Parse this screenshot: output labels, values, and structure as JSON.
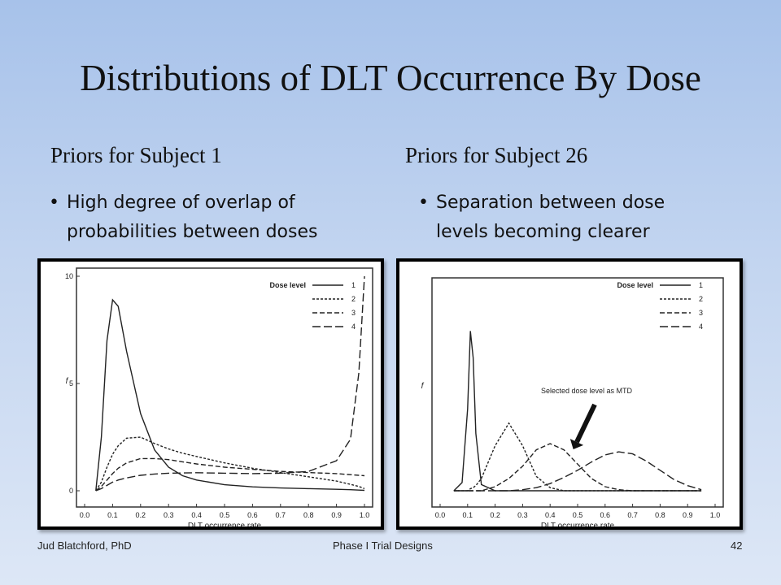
{
  "slide": {
    "title": "Distributions of DLT Occurrence By Dose",
    "left": {
      "heading": "Priors for Subject 1",
      "bullet_line1": "High degree of overlap of",
      "bullet_line2": "probabilities between doses"
    },
    "right": {
      "heading": "Priors for Subject 26",
      "bullet_line1": "Separation between dose",
      "bullet_line2": "levels becoming clearer"
    },
    "footer": {
      "author": "Jud Blatchford, PhD",
      "center": "Phase I Trial Designs",
      "page": "42"
    }
  },
  "chart_data": [
    {
      "type": "line",
      "xlabel": "DLT occurrence rate",
      "ylabel": "f",
      "xlim": [
        0,
        1.0
      ],
      "ylim": [
        0,
        10
      ],
      "x_ticks": [
        "0.0",
        "0.1",
        "0.2",
        "0.3",
        "0.4",
        "0.5",
        "0.6",
        "0.7",
        "0.8",
        "0.9",
        "1.0"
      ],
      "y_ticks": [
        "0",
        "5",
        "10"
      ],
      "legend_title": "Dose level",
      "legend_position": "top-right",
      "x": [
        0.04,
        0.06,
        0.08,
        0.1,
        0.12,
        0.15,
        0.2,
        0.25,
        0.3,
        0.35,
        0.4,
        0.5,
        0.6,
        0.7,
        0.8,
        0.9,
        0.95,
        0.98,
        1.0
      ],
      "series": [
        {
          "name": "1",
          "style": "solid",
          "values": [
            0,
            2.5,
            7.0,
            8.9,
            8.6,
            6.5,
            3.6,
            1.9,
            1.1,
            0.7,
            0.5,
            0.28,
            0.18,
            0.13,
            0.1,
            0.07,
            0.05,
            0.03,
            0.02
          ]
        },
        {
          "name": "2",
          "style": "dotted",
          "values": [
            0,
            0.4,
            1.1,
            1.7,
            2.1,
            2.45,
            2.5,
            2.2,
            1.95,
            1.75,
            1.6,
            1.3,
            1.05,
            0.85,
            0.65,
            0.45,
            0.3,
            0.2,
            0.1
          ]
        },
        {
          "name": "3",
          "style": "dashed",
          "values": [
            0,
            0.2,
            0.5,
            0.8,
            1.05,
            1.3,
            1.5,
            1.5,
            1.45,
            1.35,
            1.25,
            1.1,
            1.0,
            0.9,
            0.85,
            0.8,
            0.75,
            0.72,
            0.7
          ]
        },
        {
          "name": "4",
          "style": "long-dashed",
          "values": [
            0,
            0.1,
            0.25,
            0.4,
            0.5,
            0.6,
            0.72,
            0.78,
            0.82,
            0.83,
            0.84,
            0.82,
            0.8,
            0.82,
            0.9,
            1.4,
            2.4,
            5.5,
            10
          ]
        }
      ]
    },
    {
      "type": "line",
      "xlabel": "DLT occurrence rate",
      "ylabel": "f",
      "xlim": [
        0,
        1.0
      ],
      "ylim": [
        0,
        10
      ],
      "x_ticks": [
        "0.0",
        "0.1",
        "0.2",
        "0.3",
        "0.4",
        "0.5",
        "0.6",
        "0.7",
        "0.8",
        "0.9",
        "1.0"
      ],
      "legend_title": "Dose level",
      "legend_position": "top-right",
      "annotation": "Selected dose level as MTD",
      "x": [
        0.05,
        0.08,
        0.1,
        0.11,
        0.12,
        0.13,
        0.15,
        0.2,
        0.25,
        0.3,
        0.35,
        0.4,
        0.45,
        0.5,
        0.55,
        0.6,
        0.65,
        0.7,
        0.75,
        0.8,
        0.85,
        0.9,
        0.95
      ],
      "series": [
        {
          "name": "1",
          "style": "solid",
          "values": [
            0,
            0.4,
            4.0,
            7.8,
            6.5,
            2.8,
            0.3,
            0,
            0,
            0,
            0,
            0,
            0,
            0,
            0,
            0,
            0,
            0,
            0,
            0,
            0,
            0,
            0
          ]
        },
        {
          "name": "2",
          "style": "dotted",
          "values": [
            0,
            0,
            0,
            0.1,
            0.15,
            0.25,
            0.6,
            2.2,
            3.3,
            2.2,
            0.7,
            0.15,
            0,
            0,
            0,
            0,
            0,
            0,
            0,
            0,
            0,
            0,
            0
          ]
        },
        {
          "name": "3",
          "style": "dashed",
          "values": [
            0,
            0,
            0,
            0,
            0,
            0,
            0,
            0.2,
            0.6,
            1.2,
            2.0,
            2.3,
            2.0,
            1.3,
            0.6,
            0.2,
            0.05,
            0,
            0,
            0,
            0,
            0,
            0
          ]
        },
        {
          "name": "4",
          "style": "long-dashed",
          "values": [
            0,
            0,
            0,
            0,
            0,
            0,
            0,
            0,
            0,
            0.05,
            0.15,
            0.35,
            0.65,
            1.0,
            1.4,
            1.75,
            1.9,
            1.8,
            1.45,
            1.0,
            0.55,
            0.25,
            0.05
          ]
        }
      ]
    }
  ]
}
